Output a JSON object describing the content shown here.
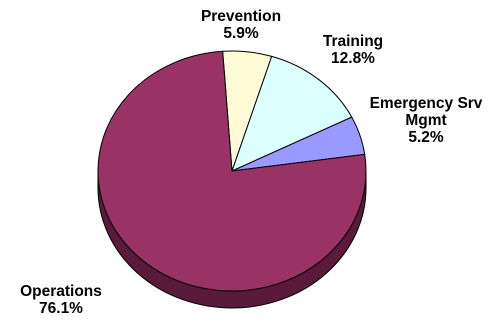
{
  "chart_data": {
    "type": "pie",
    "title": "",
    "three_d": true,
    "slices": [
      {
        "name": "Prevention",
        "value": 5.9,
        "label": "5.9%",
        "color": "#fffbd6"
      },
      {
        "name": "Training",
        "value": 12.8,
        "label": "12.8%",
        "color": "#dcffff"
      },
      {
        "name": "Emergency Srv Mgmt",
        "name_lines": [
          "Emergency Srv",
          "Mgmt"
        ],
        "value": 5.2,
        "label": "5.2%",
        "color": "#9999ff"
      },
      {
        "name": "Operations",
        "value": 76.1,
        "label": "76.1%",
        "color": "#993366"
      }
    ],
    "edge_color": "#000000",
    "side_color": "#5a1a3c"
  }
}
